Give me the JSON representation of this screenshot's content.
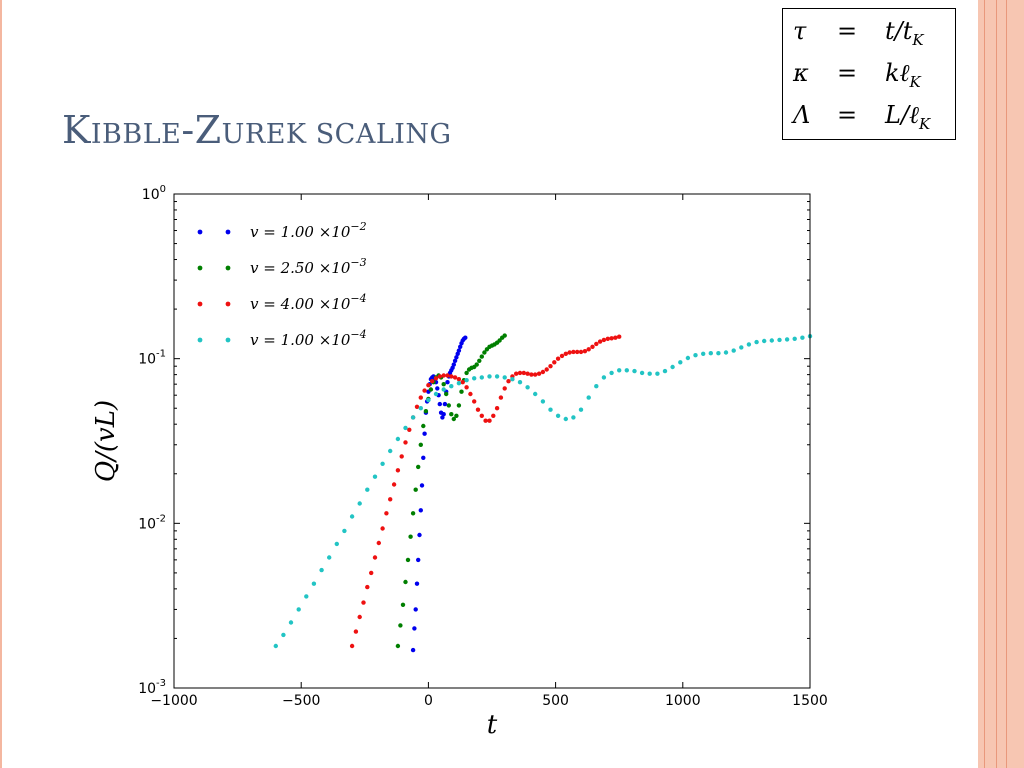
{
  "slide": {
    "title_first_big": "K",
    "title_first_small": "IBBLE",
    "title_second_big": "-Z",
    "title_second_small": "UREK SCALING"
  },
  "definitions": [
    {
      "lhs": "τ",
      "eq": "=",
      "rhs": "t/t",
      "sub": "K"
    },
    {
      "lhs": "κ",
      "eq": "=",
      "rhs": "kℓ",
      "sub": "K"
    },
    {
      "lhs": "Λ",
      "eq": "=",
      "rhs": "L/ℓ",
      "sub": "K"
    }
  ],
  "colors": {
    "accent_title": "#4a5d7a",
    "stripe": "#f7c6b2",
    "series": [
      "#0000ee",
      "#007f00",
      "#ee1111",
      "#22c4c4"
    ]
  },
  "chart_data": {
    "type": "scatter",
    "xlabel": "t",
    "ylabel": "Q/(vL)",
    "xlim": [
      -1000,
      1500
    ],
    "ylim": [
      0.001,
      1
    ],
    "yscale": "log",
    "grid": false,
    "legend_position": "top-left",
    "xticks": [
      "−1000",
      "−500",
      "0",
      "500",
      "1000",
      "1500"
    ],
    "xtick_values": [
      -1000,
      -500,
      0,
      500,
      1000,
      1500
    ],
    "yticks": [
      {
        "base": "10",
        "exp": "-3",
        "value": 0.001
      },
      {
        "base": "10",
        "exp": "-2",
        "value": 0.01
      },
      {
        "base": "10",
        "exp": "-1",
        "value": 0.1
      },
      {
        "base": "10",
        "exp": "0",
        "value": 1
      }
    ],
    "series": [
      {
        "name": "v=1.00×10⁻²",
        "name_main": "v = 1.00 ×10",
        "name_exp": "−2",
        "color": "#0000ee",
        "points": [
          [
            -60,
            0.0017
          ],
          [
            -55,
            0.0023
          ],
          [
            -50,
            0.003
          ],
          [
            -45,
            0.0043
          ],
          [
            -40,
            0.006
          ],
          [
            -35,
            0.0085
          ],
          [
            -30,
            0.012
          ],
          [
            -25,
            0.017
          ],
          [
            -20,
            0.025
          ],
          [
            -15,
            0.035
          ],
          [
            -10,
            0.047
          ],
          [
            -5,
            0.055
          ],
          [
            0,
            0.063
          ],
          [
            5,
            0.07
          ],
          [
            10,
            0.075
          ],
          [
            15,
            0.077
          ],
          [
            20,
            0.078
          ],
          [
            25,
            0.076
          ],
          [
            30,
            0.072
          ],
          [
            35,
            0.066
          ],
          [
            40,
            0.06
          ],
          [
            45,
            0.053
          ],
          [
            50,
            0.047
          ],
          [
            55,
            0.044
          ],
          [
            60,
            0.046
          ],
          [
            65,
            0.053
          ],
          [
            70,
            0.063
          ],
          [
            75,
            0.072
          ],
          [
            80,
            0.078
          ],
          [
            85,
            0.082
          ],
          [
            90,
            0.085
          ],
          [
            95,
            0.088
          ],
          [
            100,
            0.092
          ],
          [
            105,
            0.097
          ],
          [
            110,
            0.102
          ],
          [
            115,
            0.107
          ],
          [
            120,
            0.112
          ],
          [
            125,
            0.118
          ],
          [
            130,
            0.124
          ],
          [
            135,
            0.129
          ],
          [
            140,
            0.132
          ],
          [
            145,
            0.134
          ]
        ]
      },
      {
        "name": "v=2.50×10⁻³",
        "name_main": "v = 2.50 ×10",
        "name_exp": "−3",
        "color": "#007f00",
        "points": [
          [
            -120,
            0.0018
          ],
          [
            -110,
            0.0024
          ],
          [
            -100,
            0.0032
          ],
          [
            -90,
            0.0044
          ],
          [
            -80,
            0.006
          ],
          [
            -70,
            0.0083
          ],
          [
            -60,
            0.0115
          ],
          [
            -50,
            0.016
          ],
          [
            -40,
            0.022
          ],
          [
            -30,
            0.03
          ],
          [
            -20,
            0.039
          ],
          [
            -10,
            0.048
          ],
          [
            0,
            0.057
          ],
          [
            10,
            0.065
          ],
          [
            20,
            0.072
          ],
          [
            30,
            0.077
          ],
          [
            40,
            0.079
          ],
          [
            50,
            0.077
          ],
          [
            60,
            0.07
          ],
          [
            70,
            0.061
          ],
          [
            80,
            0.052
          ],
          [
            90,
            0.046
          ],
          [
            100,
            0.043
          ],
          [
            110,
            0.045
          ],
          [
            120,
            0.052
          ],
          [
            130,
            0.063
          ],
          [
            140,
            0.074
          ],
          [
            150,
            0.082
          ],
          [
            160,
            0.086
          ],
          [
            170,
            0.088
          ],
          [
            180,
            0.089
          ],
          [
            190,
            0.092
          ],
          [
            200,
            0.097
          ],
          [
            210,
            0.103
          ],
          [
            220,
            0.109
          ],
          [
            230,
            0.114
          ],
          [
            240,
            0.118
          ],
          [
            250,
            0.12
          ],
          [
            260,
            0.122
          ],
          [
            270,
            0.125
          ],
          [
            280,
            0.129
          ],
          [
            290,
            0.134
          ],
          [
            300,
            0.138
          ]
        ]
      },
      {
        "name": "v=4.00×10⁻⁴",
        "name_main": "v = 4.00 ×10",
        "name_exp": "−4",
        "color": "#ee1111",
        "points": [
          [
            -300,
            0.0018
          ],
          [
            -285,
            0.0022
          ],
          [
            -270,
            0.0027
          ],
          [
            -255,
            0.0033
          ],
          [
            -240,
            0.0041
          ],
          [
            -225,
            0.005
          ],
          [
            -210,
            0.0062
          ],
          [
            -195,
            0.0076
          ],
          [
            -180,
            0.0093
          ],
          [
            -165,
            0.0115
          ],
          [
            -150,
            0.014
          ],
          [
            -135,
            0.0172
          ],
          [
            -120,
            0.021
          ],
          [
            -105,
            0.0255
          ],
          [
            -90,
            0.031
          ],
          [
            -75,
            0.037
          ],
          [
            -60,
            0.044
          ],
          [
            -45,
            0.051
          ],
          [
            -30,
            0.058
          ],
          [
            -15,
            0.064
          ],
          [
            0,
            0.069
          ],
          [
            15,
            0.073
          ],
          [
            30,
            0.076
          ],
          [
            45,
            0.078
          ],
          [
            60,
            0.079
          ],
          [
            75,
            0.079
          ],
          [
            90,
            0.078
          ],
          [
            105,
            0.077
          ],
          [
            120,
            0.075
          ],
          [
            135,
            0.072
          ],
          [
            150,
            0.067
          ],
          [
            165,
            0.061
          ],
          [
            180,
            0.055
          ],
          [
            195,
            0.049
          ],
          [
            210,
            0.045
          ],
          [
            225,
            0.042
          ],
          [
            240,
            0.042
          ],
          [
            255,
            0.045
          ],
          [
            270,
            0.05
          ],
          [
            285,
            0.058
          ],
          [
            300,
            0.066
          ],
          [
            315,
            0.073
          ],
          [
            330,
            0.078
          ],
          [
            345,
            0.081
          ],
          [
            360,
            0.082
          ],
          [
            375,
            0.082
          ],
          [
            390,
            0.081
          ],
          [
            405,
            0.08
          ],
          [
            420,
            0.08
          ],
          [
            435,
            0.081
          ],
          [
            450,
            0.083
          ],
          [
            465,
            0.086
          ],
          [
            480,
            0.09
          ],
          [
            495,
            0.095
          ],
          [
            510,
            0.1
          ],
          [
            525,
            0.104
          ],
          [
            540,
            0.107
          ],
          [
            555,
            0.109
          ],
          [
            570,
            0.11
          ],
          [
            585,
            0.11
          ],
          [
            600,
            0.11
          ],
          [
            615,
            0.111
          ],
          [
            630,
            0.114
          ],
          [
            645,
            0.118
          ],
          [
            660,
            0.123
          ],
          [
            675,
            0.127
          ],
          [
            690,
            0.13
          ],
          [
            705,
            0.132
          ],
          [
            720,
            0.133
          ],
          [
            735,
            0.134
          ],
          [
            750,
            0.136
          ]
        ]
      },
      {
        "name": "v=1.00×10⁻⁴",
        "name_main": "v = 1.00 ×10",
        "name_exp": "−4",
        "color": "#22c4c4",
        "points": [
          [
            -600,
            0.0018
          ],
          [
            -570,
            0.0021
          ],
          [
            -540,
            0.0025
          ],
          [
            -510,
            0.003
          ],
          [
            -480,
            0.0036
          ],
          [
            -450,
            0.0043
          ],
          [
            -420,
            0.0052
          ],
          [
            -390,
            0.0062
          ],
          [
            -360,
            0.0075
          ],
          [
            -330,
            0.009
          ],
          [
            -300,
            0.011
          ],
          [
            -270,
            0.0132
          ],
          [
            -240,
            0.016
          ],
          [
            -210,
            0.0192
          ],
          [
            -180,
            0.023
          ],
          [
            -150,
            0.0275
          ],
          [
            -120,
            0.0325
          ],
          [
            -90,
            0.038
          ],
          [
            -60,
            0.044
          ],
          [
            -30,
            0.05
          ],
          [
            0,
            0.056
          ],
          [
            30,
            0.061
          ],
          [
            60,
            0.065
          ],
          [
            90,
            0.068
          ],
          [
            120,
            0.071
          ],
          [
            150,
            0.074
          ],
          [
            180,
            0.076
          ],
          [
            210,
            0.077
          ],
          [
            240,
            0.078
          ],
          [
            270,
            0.078
          ],
          [
            300,
            0.077
          ],
          [
            330,
            0.075
          ],
          [
            360,
            0.072
          ],
          [
            390,
            0.067
          ],
          [
            420,
            0.061
          ],
          [
            450,
            0.055
          ],
          [
            480,
            0.049
          ],
          [
            510,
            0.045
          ],
          [
            540,
            0.043
          ],
          [
            570,
            0.044
          ],
          [
            600,
            0.049
          ],
          [
            630,
            0.058
          ],
          [
            660,
            0.068
          ],
          [
            690,
            0.077
          ],
          [
            720,
            0.082
          ],
          [
            750,
            0.085
          ],
          [
            780,
            0.085
          ],
          [
            810,
            0.084
          ],
          [
            840,
            0.082
          ],
          [
            870,
            0.081
          ],
          [
            900,
            0.081
          ],
          [
            930,
            0.084
          ],
          [
            960,
            0.089
          ],
          [
            990,
            0.095
          ],
          [
            1020,
            0.101
          ],
          [
            1050,
            0.105
          ],
          [
            1080,
            0.107
          ],
          [
            1110,
            0.108
          ],
          [
            1140,
            0.108
          ],
          [
            1170,
            0.109
          ],
          [
            1200,
            0.112
          ],
          [
            1230,
            0.117
          ],
          [
            1260,
            0.122
          ],
          [
            1290,
            0.126
          ],
          [
            1320,
            0.128
          ],
          [
            1350,
            0.129
          ],
          [
            1380,
            0.13
          ],
          [
            1410,
            0.131
          ],
          [
            1440,
            0.132
          ],
          [
            1470,
            0.134
          ],
          [
            1500,
            0.137
          ]
        ]
      }
    ]
  }
}
